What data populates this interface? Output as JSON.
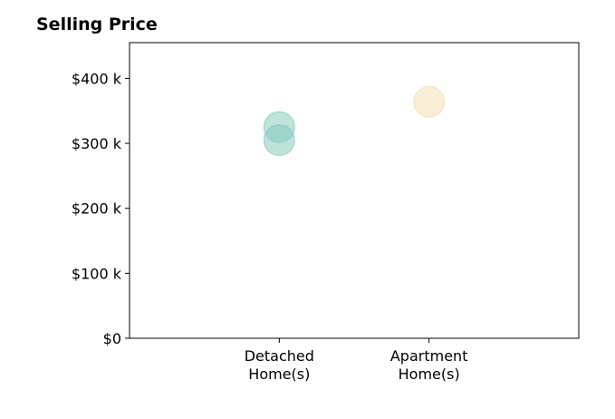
{
  "chart_data": {
    "type": "scatter",
    "title": "Selling Price",
    "xlabel": "",
    "ylabel": "",
    "categories": [
      [
        "Detached",
        "Home(s)"
      ],
      [
        "Apartment",
        "Home(s)"
      ]
    ],
    "xlim": [
      0,
      3
    ],
    "ylim": [
      0,
      455000
    ],
    "yticks": [
      0,
      100000,
      200000,
      300000,
      400000
    ],
    "ytick_labels": [
      "$0",
      "$100 k",
      "$200 k",
      "$300 k",
      "$400 k"
    ],
    "grid": false,
    "series": [
      {
        "category_index": 0,
        "color": "#7fc7b8",
        "points": [
          {
            "x": 1,
            "y": 325000
          },
          {
            "x": 1,
            "y": 305000
          }
        ]
      },
      {
        "category_index": 1,
        "color": "#f3dcae",
        "points": [
          {
            "x": 2,
            "y": 364000
          }
        ]
      }
    ]
  }
}
